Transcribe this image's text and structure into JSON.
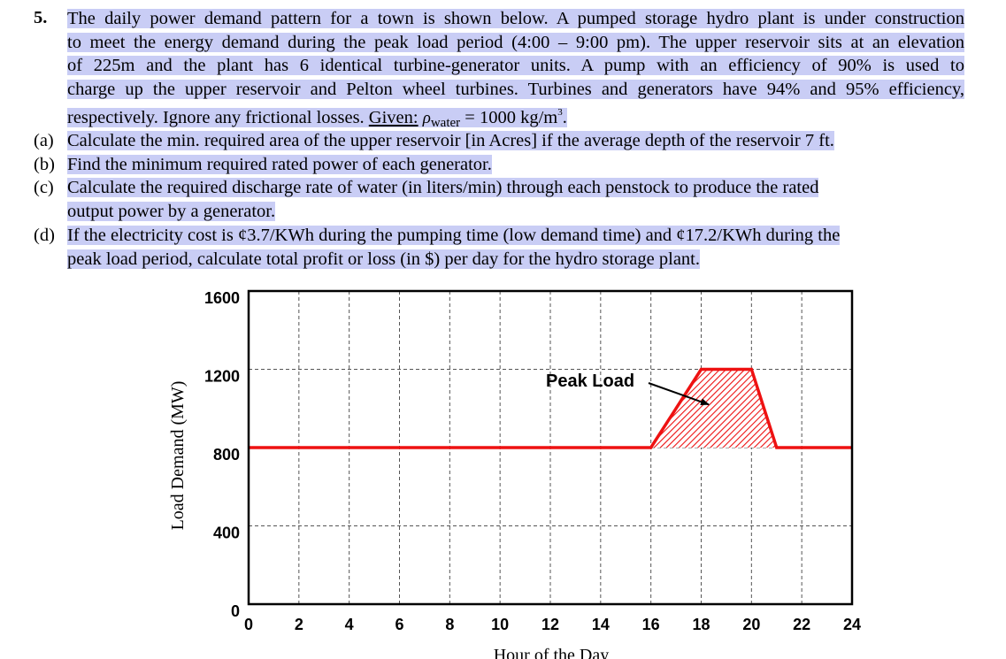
{
  "problem": {
    "number": "5.",
    "intro_lines": [
      "The daily power demand pattern for a town is shown below. A pumped storage hydro plant is under construction",
      "to meet the energy demand during the peak load period (4:00 – 9:00 pm). The upper reservoir sits at an elevation",
      "of 225m and the plant has 6 identical turbine-generator units. A pump with an efficiency of 90% is used to",
      "charge up the upper reservoir and Pelton wheel turbines. Turbines and generators have 94% and 95% efficiency,"
    ],
    "last_line_start": "respectively. Ignore any frictional losses.",
    "given_label": "Given:",
    "rho_symbol": "ρ",
    "rho_subscript": "water",
    "rho_value": "= 1000 kg/m",
    "rho_exponent": "3",
    "rho_end": "."
  },
  "questions": [
    {
      "label": "(a)",
      "lines": [
        "Calculate the min. required area of the upper reservoir [in Acres] if the average depth of the reservoir 7 ft."
      ]
    },
    {
      "label": "(b)",
      "lines": [
        "Find the minimum required rated power of each generator."
      ]
    },
    {
      "label": "(c)",
      "lines": [
        "Calculate the required discharge rate of water (in liters/min) through each penstock to produce the rated",
        "output power by a generator."
      ]
    },
    {
      "label": "(d)",
      "lines": [
        "If the electricity cost is ¢3.7/KWh during the pumping time (low demand time) and ¢17.2/KWh during the",
        "peak load period, calculate total profit or loss (in $) per day for the hydro storage plant."
      ]
    }
  ],
  "chart_data": {
    "type": "line",
    "xlabel": "Hour of the Day",
    "ylabel": "Load Demand (MW)",
    "xlim": [
      0,
      24
    ],
    "ylim": [
      0,
      1600
    ],
    "x_ticks": [
      0,
      2,
      4,
      6,
      8,
      10,
      12,
      14,
      16,
      18,
      20,
      22,
      24
    ],
    "y_ticks": [
      0,
      400,
      800,
      1200,
      1600
    ],
    "grid": true,
    "series": [
      {
        "x": [
          0,
          16,
          18,
          20,
          21,
          24
        ],
        "y": [
          800,
          800,
          1200,
          1200,
          800,
          800
        ],
        "color": "#ee1111"
      }
    ],
    "shaded_region": {
      "x": [
        16,
        18,
        20,
        21
      ],
      "y": [
        800,
        1200,
        1200,
        800
      ],
      "baseline": 800,
      "fill": "hatched",
      "color": "#ee1111"
    },
    "annotations": [
      {
        "text": "Peak Load",
        "arrow_to": [
          18.3,
          1020
        ]
      }
    ]
  }
}
